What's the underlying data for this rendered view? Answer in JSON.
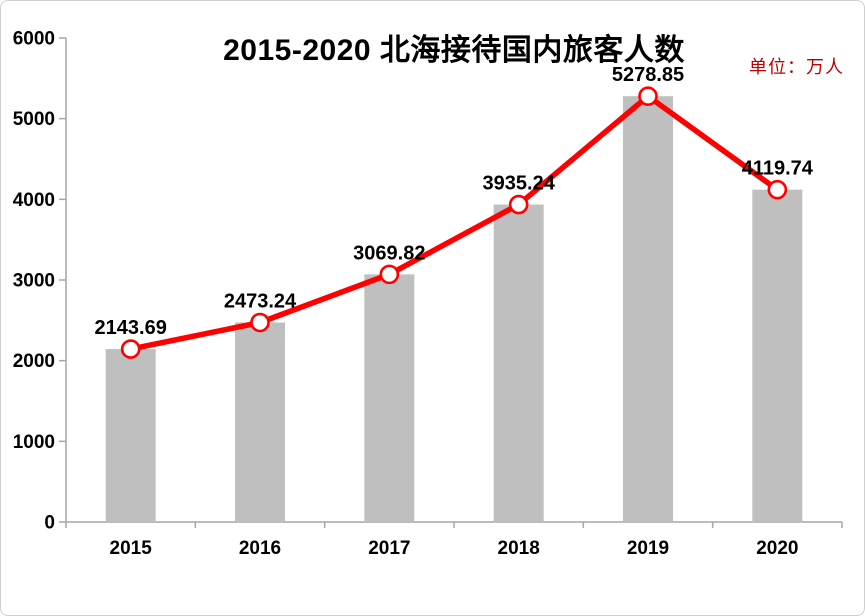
{
  "window": {
    "background": "#FFFFFF",
    "border_color": "#CFCFCF"
  },
  "chart_data": {
    "type": "bar",
    "overlay": "line",
    "title": "2015-2020 北海接待国内旅客人数",
    "unit_annotation": "单位：万人",
    "categories": [
      "2015",
      "2016",
      "2017",
      "2018",
      "2019",
      "2020"
    ],
    "values": [
      2143.69,
      2473.24,
      3069.82,
      3935.24,
      5278.85,
      4119.74
    ],
    "data_labels": [
      "2143.69",
      "2473.24",
      "3069.82",
      "3935.24",
      "5278.85",
      "4119.74"
    ],
    "xlabel": "",
    "ylabel": "",
    "ylim": [
      0,
      6000
    ],
    "yticks": [
      0,
      1000,
      2000,
      3000,
      4000,
      5000,
      6000
    ],
    "grid": false,
    "legend": "none",
    "marker": "open-circle",
    "colors": {
      "bar": "#BFBFBF",
      "line": "#FF0000",
      "marker_fill": "#FFFFFF",
      "marker_stroke": "#FF0000",
      "axis": "#A6A6A6",
      "text": "#000000",
      "unit_text": "#C00000"
    }
  }
}
